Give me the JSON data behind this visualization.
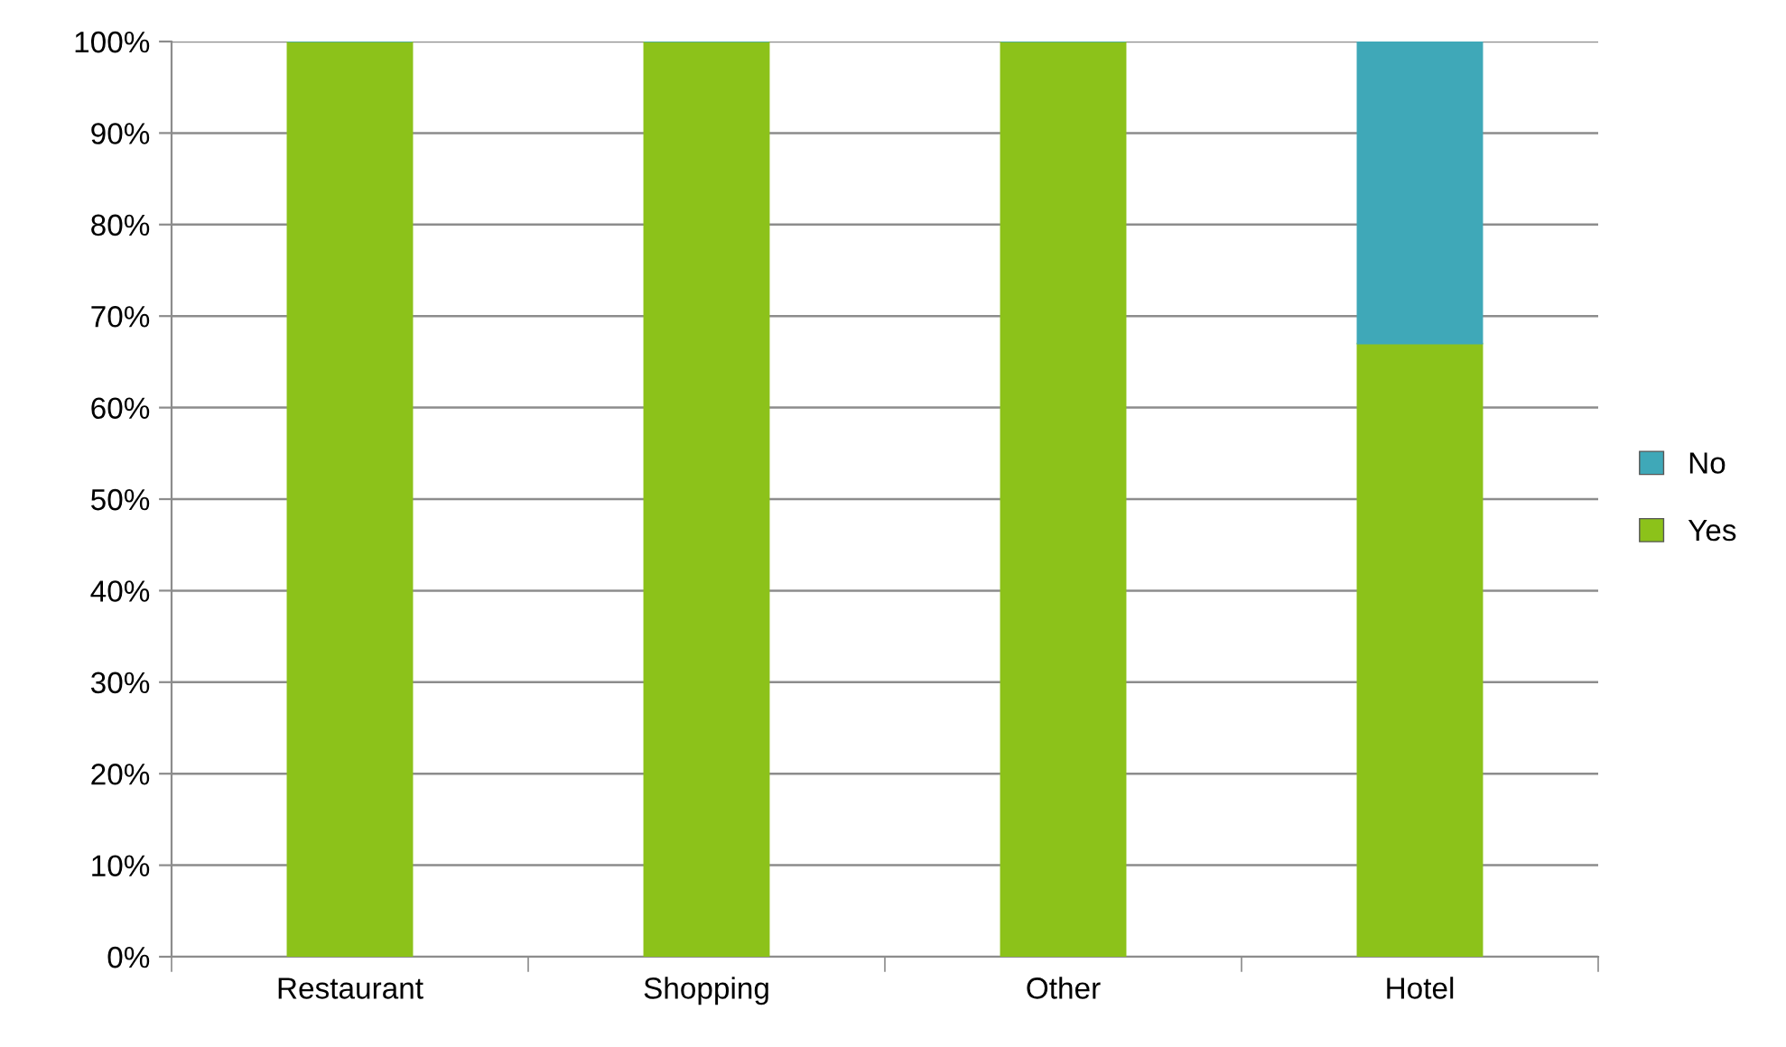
{
  "chart_data": {
    "type": "bar",
    "stacked": true,
    "categories": [
      "Restaurant",
      "Shopping",
      "Other",
      "Hotel"
    ],
    "series": [
      {
        "name": "Yes",
        "color": "#8cc21a",
        "values": [
          100,
          100,
          100,
          67
        ]
      },
      {
        "name": "No",
        "color": "#3fa8b8",
        "values": [
          0,
          0,
          0,
          33
        ]
      }
    ],
    "ylim": [
      0,
      100
    ],
    "yticks": [
      {
        "value": 0,
        "label": "0%"
      },
      {
        "value": 10,
        "label": "10%"
      },
      {
        "value": 20,
        "label": "20%"
      },
      {
        "value": 30,
        "label": "30%"
      },
      {
        "value": 40,
        "label": "40%"
      },
      {
        "value": 50,
        "label": "50%"
      },
      {
        "value": 60,
        "label": "60%"
      },
      {
        "value": 70,
        "label": "70%"
      },
      {
        "value": 80,
        "label": "80%"
      },
      {
        "value": 90,
        "label": "90%"
      },
      {
        "value": 100,
        "label": "100%"
      }
    ],
    "grid": "y",
    "legend": "right"
  }
}
